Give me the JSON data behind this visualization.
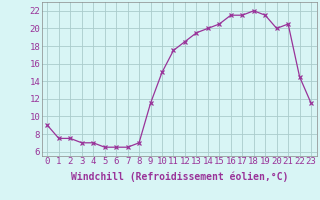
{
  "x": [
    0,
    1,
    2,
    3,
    4,
    5,
    6,
    7,
    8,
    9,
    10,
    11,
    12,
    13,
    14,
    15,
    16,
    17,
    18,
    19,
    20,
    21,
    22,
    23
  ],
  "y": [
    9.0,
    7.5,
    7.5,
    7.0,
    7.0,
    6.5,
    6.5,
    6.5,
    7.0,
    11.5,
    15.0,
    17.5,
    18.5,
    19.5,
    20.0,
    20.5,
    21.5,
    21.5,
    22.0,
    21.5,
    20.0,
    20.5,
    14.5,
    11.5
  ],
  "line_color": "#993399",
  "marker": "x",
  "marker_size": 3,
  "bg_color": "#d8f5f5",
  "grid_color": "#aacccc",
  "xlabel": "Windchill (Refroidissement éolien,°C)",
  "ylabel_ticks": [
    6,
    8,
    10,
    12,
    14,
    16,
    18,
    20,
    22
  ],
  "xlim": [
    -0.5,
    23.5
  ],
  "ylim": [
    5.5,
    23.0
  ],
  "xticks": [
    0,
    1,
    2,
    3,
    4,
    5,
    6,
    7,
    8,
    9,
    10,
    11,
    12,
    13,
    14,
    15,
    16,
    17,
    18,
    19,
    20,
    21,
    22,
    23
  ],
  "xlabel_fontsize": 7,
  "tick_fontsize": 6.5
}
